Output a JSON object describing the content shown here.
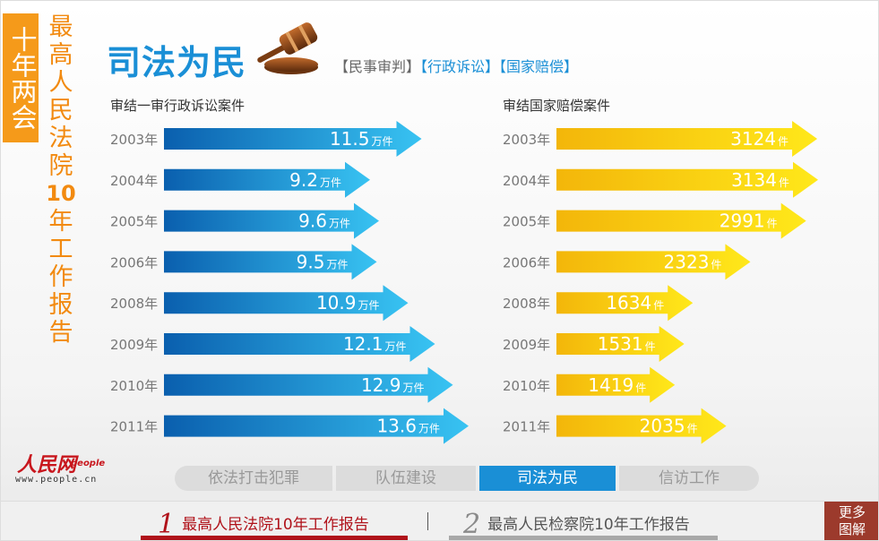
{
  "side": {
    "tab_text": "十年两会",
    "title_chars": [
      "最",
      "高",
      "人",
      "民",
      "法",
      "院",
      "10",
      "年",
      "工",
      "作",
      "报",
      "告"
    ]
  },
  "header": {
    "title": "司法为民",
    "links": [
      {
        "label": "【民事审判】",
        "active": false
      },
      {
        "label": "【行政诉讼】",
        "active": true
      },
      {
        "label": "【国家赔偿】",
        "active": true
      }
    ]
  },
  "colors": {
    "blue_dark": "#0a5fae",
    "blue_light": "#38c3f2",
    "yellow_dark": "#f3b60a",
    "yellow_light": "#ffe81a",
    "orange": "#f59a1a",
    "red": "#b0121a"
  },
  "chart_data": [
    {
      "type": "bar",
      "title": "审结一审行政诉讼案件",
      "categories": [
        "2003年",
        "2004年",
        "2005年",
        "2006年",
        "2008年",
        "2009年",
        "2010年",
        "2011年"
      ],
      "values": [
        11.5,
        9.2,
        9.6,
        9.5,
        10.9,
        12.1,
        12.9,
        13.6
      ],
      "value_labels": [
        "11.5",
        "9.2",
        "9.6",
        "9.5",
        "10.9",
        "12.1",
        "12.9",
        "13.6"
      ],
      "unit": "万件",
      "xlim": [
        0,
        13.6
      ]
    },
    {
      "type": "bar",
      "title": "审结国家赔偿案件",
      "categories": [
        "2003年",
        "2004年",
        "2005年",
        "2006年",
        "2008年",
        "2009年",
        "2010年",
        "2011年"
      ],
      "values": [
        3124,
        3134,
        2991,
        2323,
        1634,
        1531,
        1419,
        2035
      ],
      "value_labels": [
        "3124",
        "3134",
        "2991",
        "2323",
        "1634",
        "1531",
        "1419",
        "2035"
      ],
      "unit": "件",
      "xlim": [
        0,
        3134
      ]
    }
  ],
  "logo": {
    "brand": "人民网",
    "brand_en": "people",
    "url": "www.people.cn"
  },
  "section_tabs": [
    {
      "label": "依法打击犯罪",
      "active": false
    },
    {
      "label": "队伍建设",
      "active": false
    },
    {
      "label": "司法为民",
      "active": true
    },
    {
      "label": "信访工作",
      "active": false
    }
  ],
  "bottom_bar": {
    "report_1": {
      "num": "1",
      "label": "最高人民法院10年工作报告"
    },
    "report_2": {
      "num": "2",
      "label": "最高人民检察院10年工作报告"
    },
    "more_line1": "更多",
    "more_line2": "图解"
  }
}
